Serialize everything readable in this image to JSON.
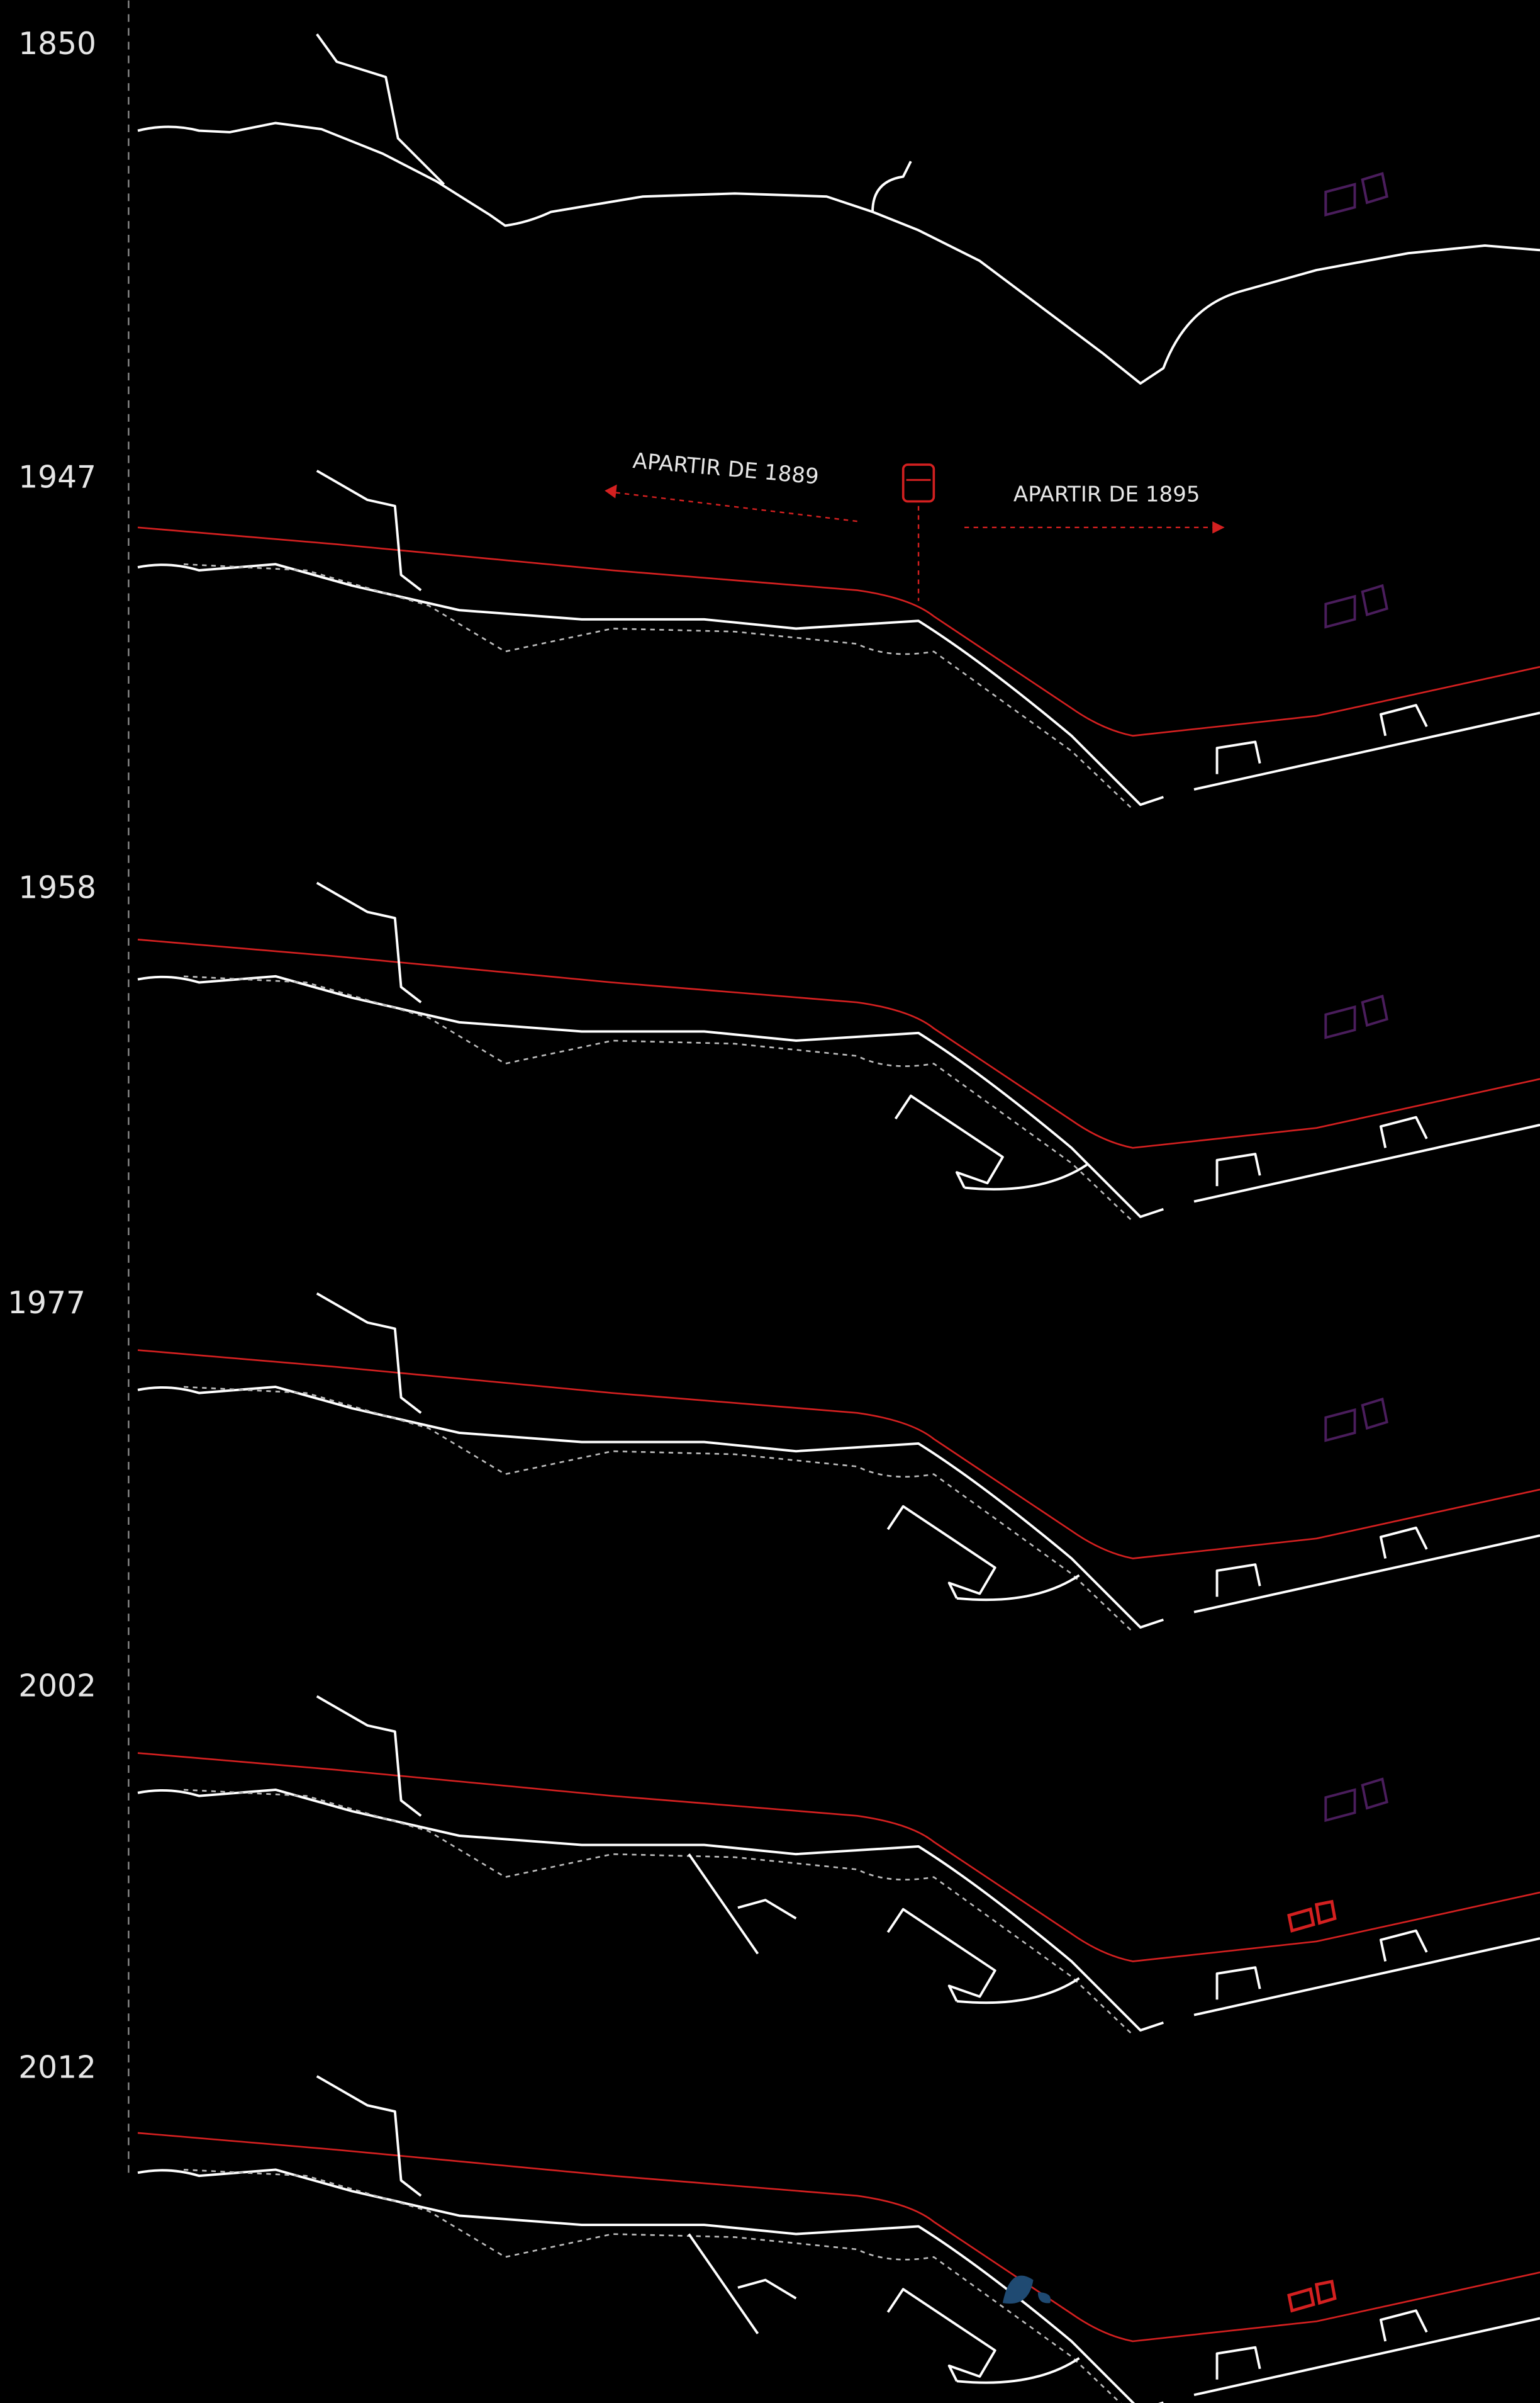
{
  "timeline": {
    "years": [
      "1850",
      "1947",
      "1958",
      "1977",
      "2002",
      "2012"
    ]
  },
  "annotations": {
    "left": "APARTIR DE 1889",
    "right": "APARTIR DE 1895"
  }
}
